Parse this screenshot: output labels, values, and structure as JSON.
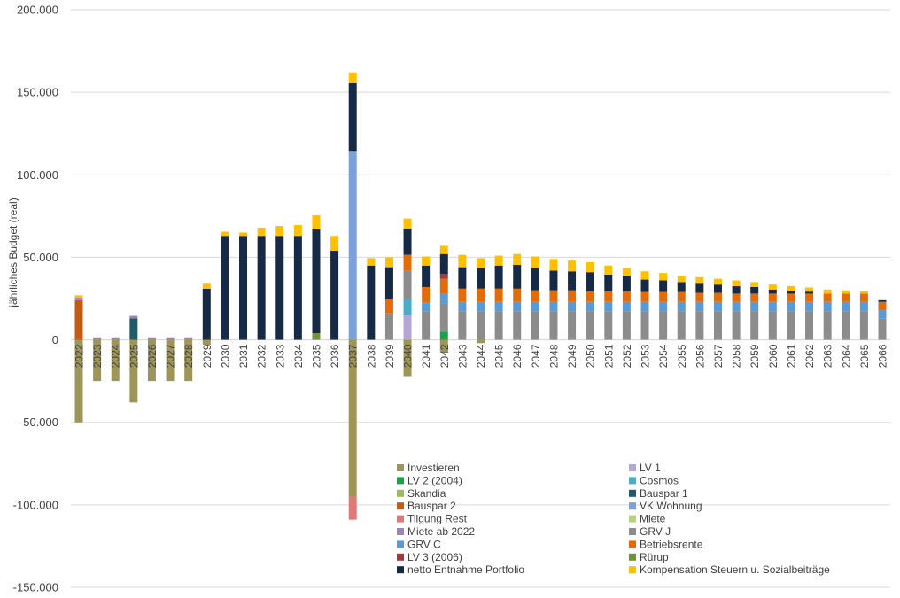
{
  "chart_data": {
    "type": "bar",
    "stacked": true,
    "ylabel": "jährliches Budget (real)",
    "xlabel": "",
    "ylim": [
      -150000,
      200000
    ],
    "yticks": [
      200000,
      150000,
      100000,
      50000,
      0,
      -50000,
      -100000,
      -150000
    ],
    "ytick_labels": [
      "200.000",
      "150.000",
      "100.000",
      "50.000",
      "0",
      "-50.000",
      "-100.000",
      "-150.000"
    ],
    "grid": "horizontal",
    "legend_position": "bottom-right (inside plot)",
    "categories": [
      "2022",
      "2023",
      "2024",
      "2025",
      "2026",
      "2027",
      "2028",
      "2029",
      "2030",
      "2031",
      "2032",
      "2033",
      "2034",
      "2035",
      "2036",
      "2037",
      "2038",
      "2039",
      "2040",
      "2041",
      "2042",
      "2043",
      "2044",
      "2045",
      "2046",
      "2047",
      "2048",
      "2049",
      "2050",
      "2051",
      "2052",
      "2053",
      "2054",
      "2055",
      "2056",
      "2057",
      "2058",
      "2059",
      "2060",
      "2061",
      "2062",
      "2063",
      "2064",
      "2065",
      "2066"
    ],
    "series": [
      {
        "name": "Investieren",
        "color": "#9e9659",
        "values": [
          -50000,
          -25000,
          -25000,
          -38000,
          -25000,
          -25000,
          -25000,
          -3000,
          0,
          0,
          0,
          0,
          0,
          0,
          0,
          -95000,
          0,
          0,
          -22000,
          0,
          -7000,
          0,
          -2000,
          0,
          0,
          0,
          0,
          0,
          0,
          0,
          0,
          0,
          0,
          0,
          0,
          0,
          0,
          0,
          0,
          0,
          0,
          0,
          0,
          0,
          0
        ]
      },
      {
        "name": "LV 1",
        "color": "#b4a7d6",
        "values": [
          0,
          0,
          0,
          0,
          0,
          0,
          0,
          0,
          0,
          0,
          0,
          0,
          0,
          0,
          0,
          0,
          0,
          0,
          15000,
          0,
          0,
          0,
          0,
          0,
          0,
          0,
          0,
          0,
          0,
          0,
          0,
          0,
          0,
          0,
          0,
          0,
          0,
          0,
          0,
          0,
          0,
          0,
          0,
          0,
          0
        ]
      },
      {
        "name": "LV 2 (2004)",
        "color": "#1aa24a",
        "values": [
          0,
          0,
          0,
          0,
          0,
          0,
          0,
          0,
          0,
          0,
          0,
          0,
          0,
          0,
          0,
          0,
          0,
          0,
          0,
          0,
          5000,
          0,
          0,
          0,
          0,
          0,
          0,
          0,
          0,
          0,
          0,
          0,
          0,
          0,
          0,
          0,
          0,
          0,
          0,
          0,
          0,
          0,
          0,
          0,
          0
        ]
      },
      {
        "name": "Cosmos",
        "color": "#4bacc6",
        "values": [
          0,
          0,
          0,
          0,
          0,
          0,
          0,
          0,
          0,
          0,
          0,
          0,
          0,
          0,
          0,
          0,
          0,
          0,
          10000,
          0,
          0,
          0,
          0,
          0,
          0,
          0,
          0,
          0,
          0,
          0,
          0,
          0,
          0,
          0,
          0,
          0,
          0,
          0,
          0,
          0,
          0,
          0,
          0,
          0,
          0
        ]
      },
      {
        "name": "Skandia",
        "color": "#9bbb59",
        "values": [
          0,
          0,
          0,
          0,
          0,
          0,
          0,
          0,
          0,
          0,
          0,
          0,
          0,
          0,
          0,
          0,
          0,
          0,
          0,
          0,
          0,
          0,
          0,
          0,
          0,
          0,
          0,
          0,
          0,
          0,
          0,
          0,
          0,
          0,
          0,
          0,
          0,
          0,
          0,
          0,
          0,
          0,
          0,
          0,
          0
        ]
      },
      {
        "name": "Bauspar 1",
        "color": "#215a6b",
        "values": [
          0,
          0,
          0,
          13000,
          0,
          0,
          0,
          0,
          0,
          0,
          0,
          0,
          0,
          0,
          0,
          0,
          0,
          0,
          0,
          0,
          0,
          0,
          0,
          0,
          0,
          0,
          0,
          0,
          0,
          0,
          0,
          0,
          0,
          0,
          0,
          0,
          0,
          0,
          0,
          0,
          0,
          0,
          0,
          0,
          0
        ]
      },
      {
        "name": "Bauspar 2",
        "color": "#c55a11",
        "values": [
          24000,
          0,
          0,
          0,
          0,
          0,
          0,
          0,
          0,
          0,
          0,
          0,
          0,
          0,
          0,
          0,
          0,
          0,
          0,
          0,
          0,
          0,
          0,
          0,
          0,
          0,
          0,
          0,
          0,
          0,
          0,
          0,
          0,
          0,
          0,
          0,
          0,
          0,
          0,
          0,
          0,
          0,
          0,
          0,
          0
        ]
      },
      {
        "name": "VK Wohnung",
        "color": "#7ba1d6",
        "values": [
          0,
          0,
          0,
          0,
          0,
          0,
          0,
          0,
          0,
          0,
          0,
          0,
          0,
          0,
          0,
          114000,
          0,
          0,
          0,
          0,
          0,
          0,
          0,
          0,
          0,
          0,
          0,
          0,
          0,
          0,
          0,
          0,
          0,
          0,
          0,
          0,
          0,
          0,
          0,
          0,
          0,
          0,
          0,
          0,
          0
        ]
      },
      {
        "name": "Tilgung Rest",
        "color": "#de7a7a",
        "values": [
          0,
          0,
          0,
          0,
          0,
          0,
          0,
          0,
          0,
          0,
          0,
          0,
          0,
          0,
          0,
          -14000,
          0,
          0,
          0,
          0,
          0,
          0,
          0,
          0,
          0,
          0,
          0,
          0,
          0,
          0,
          0,
          0,
          0,
          0,
          0,
          0,
          0,
          0,
          0,
          0,
          0,
          0,
          0,
          0,
          0
        ]
      },
      {
        "name": "Miete",
        "color": "#b8cf86",
        "values": [
          0,
          0,
          0,
          0,
          0,
          0,
          0,
          0,
          0,
          0,
          0,
          0,
          0,
          0,
          0,
          0,
          0,
          0,
          0,
          0,
          0,
          0,
          0,
          0,
          0,
          0,
          0,
          0,
          0,
          0,
          0,
          0,
          0,
          0,
          0,
          0,
          0,
          0,
          0,
          0,
          0,
          0,
          0,
          0,
          0
        ]
      },
      {
        "name": "Miete ab 2022",
        "color": "#9a85b5",
        "values": [
          1500,
          1500,
          1500,
          1500,
          1500,
          1500,
          1500,
          0,
          0,
          0,
          0,
          0,
          0,
          0,
          0,
          0,
          0,
          0,
          0,
          0,
          0,
          0,
          0,
          0,
          0,
          0,
          0,
          0,
          0,
          0,
          0,
          0,
          0,
          0,
          0,
          0,
          0,
          0,
          0,
          0,
          0,
          0,
          0,
          0,
          0
        ]
      },
      {
        "name": "GRV J",
        "color": "#8c8c8c",
        "values": [
          0,
          0,
          0,
          0,
          0,
          0,
          0,
          0,
          0,
          0,
          0,
          0,
          0,
          0,
          0,
          0,
          0,
          16000,
          17000,
          17000,
          17000,
          17000,
          17000,
          17000,
          17000,
          17000,
          17000,
          17000,
          17000,
          17000,
          17000,
          17000,
          17000,
          17000,
          17000,
          17000,
          17000,
          17000,
          17000,
          17000,
          17000,
          17000,
          17000,
          17000,
          13000
        ]
      },
      {
        "name": "GRV C",
        "color": "#5b9bd5",
        "values": [
          0,
          0,
          0,
          0,
          0,
          0,
          0,
          0,
          0,
          0,
          0,
          0,
          0,
          0,
          0,
          0,
          0,
          0,
          0,
          5500,
          6000,
          6000,
          6000,
          6000,
          6000,
          6000,
          6000,
          6000,
          6000,
          6000,
          6000,
          6000,
          6000,
          6000,
          6000,
          6000,
          6000,
          6000,
          6000,
          6000,
          6000,
          6000,
          6000,
          6000,
          5000
        ]
      },
      {
        "name": "Betriebsrente",
        "color": "#e36c0a",
        "values": [
          0,
          0,
          0,
          0,
          0,
          0,
          0,
          0,
          0,
          0,
          0,
          0,
          0,
          0,
          0,
          0,
          0,
          9000,
          9500,
          9500,
          9000,
          8000,
          8000,
          8000,
          8000,
          7000,
          7000,
          7000,
          6500,
          6500,
          6500,
          6000,
          6000,
          6000,
          5500,
          5500,
          5000,
          5000,
          5000,
          5000,
          5000,
          5000,
          5000,
          5000,
          5000
        ]
      },
      {
        "name": "LV 3 (2006)",
        "color": "#a5373a",
        "values": [
          0,
          0,
          0,
          0,
          0,
          0,
          0,
          0,
          0,
          0,
          0,
          0,
          0,
          0,
          0,
          0,
          0,
          0,
          0,
          0,
          3000,
          0,
          0,
          0,
          0,
          0,
          0,
          0,
          0,
          0,
          0,
          0,
          0,
          0,
          0,
          0,
          0,
          0,
          0,
          0,
          0,
          0,
          0,
          0,
          0
        ]
      },
      {
        "name": "Rürup",
        "color": "#70923a",
        "values": [
          0,
          0,
          0,
          0,
          0,
          0,
          0,
          0,
          0,
          0,
          0,
          0,
          0,
          4000,
          0,
          0,
          0,
          0,
          0,
          0,
          0,
          0,
          0,
          0,
          0,
          0,
          0,
          0,
          0,
          0,
          0,
          0,
          0,
          0,
          0,
          0,
          0,
          0,
          0,
          0,
          0,
          0,
          0,
          0,
          0
        ]
      },
      {
        "name": "netto Entnahme Portfolio",
        "color": "#172a45",
        "values": [
          0,
          0,
          0,
          0,
          0,
          0,
          0,
          31000,
          63000,
          63000,
          63000,
          63000,
          63000,
          63000,
          54000,
          41500,
          45000,
          19000,
          16000,
          13000,
          12000,
          13000,
          12500,
          14000,
          14500,
          13500,
          12000,
          11500,
          11500,
          10000,
          9000,
          7500,
          7000,
          6000,
          5500,
          5000,
          4500,
          4000,
          2500,
          1600,
          1200,
          0,
          0,
          0,
          1000
        ]
      },
      {
        "name": "Kompensation Steuern u. Sozialbeiträge",
        "color": "#ffc000",
        "values": [
          1500,
          0,
          0,
          0,
          0,
          0,
          0,
          3000,
          2500,
          2000,
          5000,
          6000,
          6500,
          8500,
          9000,
          6500,
          4500,
          6000,
          6000,
          5500,
          5000,
          7500,
          6000,
          6000,
          6500,
          7000,
          7000,
          6500,
          6000,
          5500,
          5000,
          5000,
          4500,
          3500,
          4000,
          3500,
          3500,
          3000,
          3000,
          3000,
          2500,
          2500,
          2000,
          1500,
          0
        ]
      }
    ]
  },
  "legend": {
    "columns": [
      [
        "Investieren",
        "LV 2 (2004)",
        "Skandia",
        "Bauspar 2",
        "Tilgung Rest",
        "Miete ab 2022",
        "GRV C",
        "LV 3 (2006)",
        "netto Entnahme Portfolio"
      ],
      [
        "LV 1",
        "Cosmos",
        "Bauspar 1",
        "VK Wohnung",
        "Miete",
        "GRV J",
        "Betriebsrente",
        "Rürup",
        "Kompensation Steuern u. Sozialbeiträge"
      ]
    ]
  }
}
